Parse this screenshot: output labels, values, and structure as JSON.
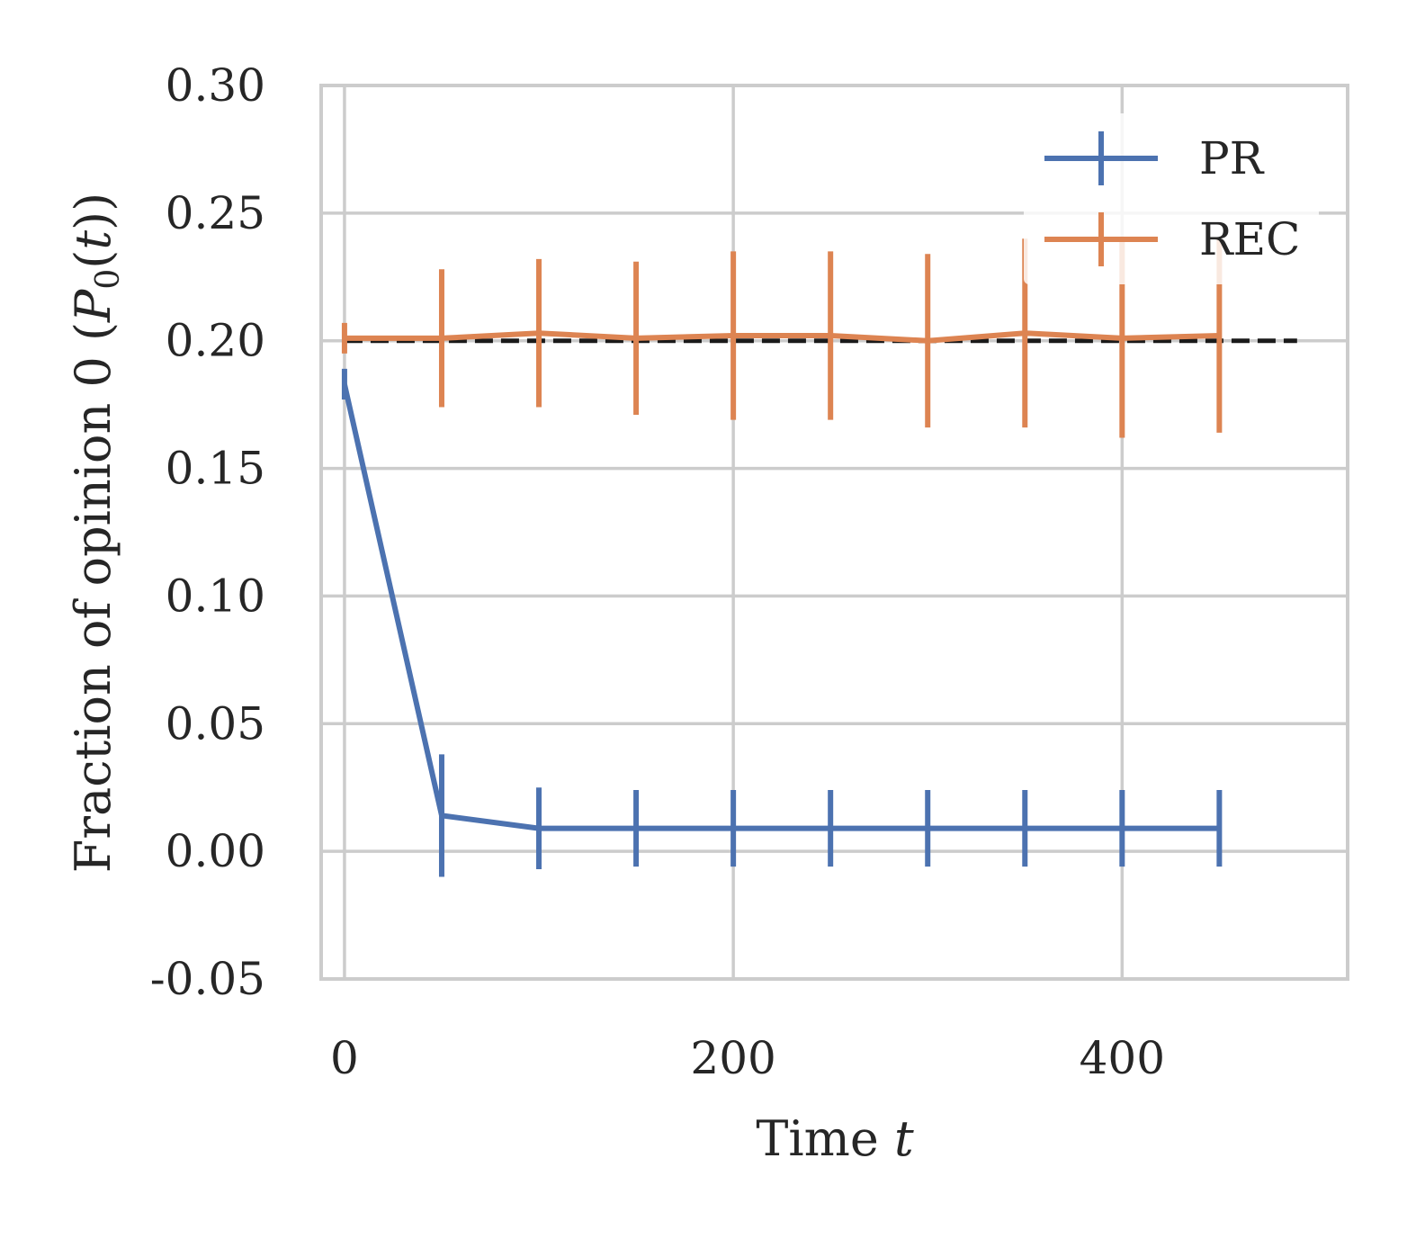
{
  "chart_data": {
    "type": "line",
    "xlabel": "Time t",
    "ylabel": "Fraction of opinion 0 (P₀(t))",
    "xlim": [
      -12,
      516
    ],
    "ylim": [
      -0.05,
      0.3
    ],
    "xticks": [
      0,
      200,
      400
    ],
    "xtick_labels": [
      "0",
      "200",
      "400"
    ],
    "yticks": [
      -0.05,
      0.0,
      0.05,
      0.1,
      0.15,
      0.2,
      0.25,
      0.3
    ],
    "ytick_labels": [
      "-0.05",
      "0.00",
      "0.05",
      "0.10",
      "0.15",
      "0.20",
      "0.25",
      "0.30"
    ],
    "grid": true,
    "legend": "top-right",
    "reference_line": {
      "y": 0.2,
      "x_range": [
        0,
        490
      ],
      "style": "dashed",
      "color": "#1a1a1a"
    },
    "series": [
      {
        "name": "PR",
        "color": "#4c72b0",
        "x": [
          0,
          50,
          100,
          150,
          200,
          250,
          300,
          350,
          400,
          450
        ],
        "y": [
          0.183,
          0.014,
          0.009,
          0.009,
          0.009,
          0.009,
          0.009,
          0.009,
          0.009,
          0.009
        ],
        "err": [
          0.006,
          0.024,
          0.016,
          0.015,
          0.015,
          0.015,
          0.015,
          0.015,
          0.015,
          0.015
        ]
      },
      {
        "name": "REC",
        "color": "#dd8452",
        "x": [
          0,
          50,
          100,
          150,
          200,
          250,
          300,
          350,
          400,
          450
        ],
        "y": [
          0.201,
          0.201,
          0.203,
          0.201,
          0.202,
          0.202,
          0.2,
          0.203,
          0.201,
          0.202
        ],
        "err": [
          0.006,
          0.027,
          0.029,
          0.03,
          0.033,
          0.033,
          0.034,
          0.037,
          0.039,
          0.038
        ]
      }
    ]
  },
  "labels": {
    "xlabel_main": "Time",
    "xlabel_var": "t",
    "ylabel_main": "Fraction of opinion 0 (",
    "ylabel_P": "P",
    "ylabel_sub": "0",
    "ylabel_open": "(",
    "ylabel_t": "t",
    "ylabel_close": "))"
  }
}
